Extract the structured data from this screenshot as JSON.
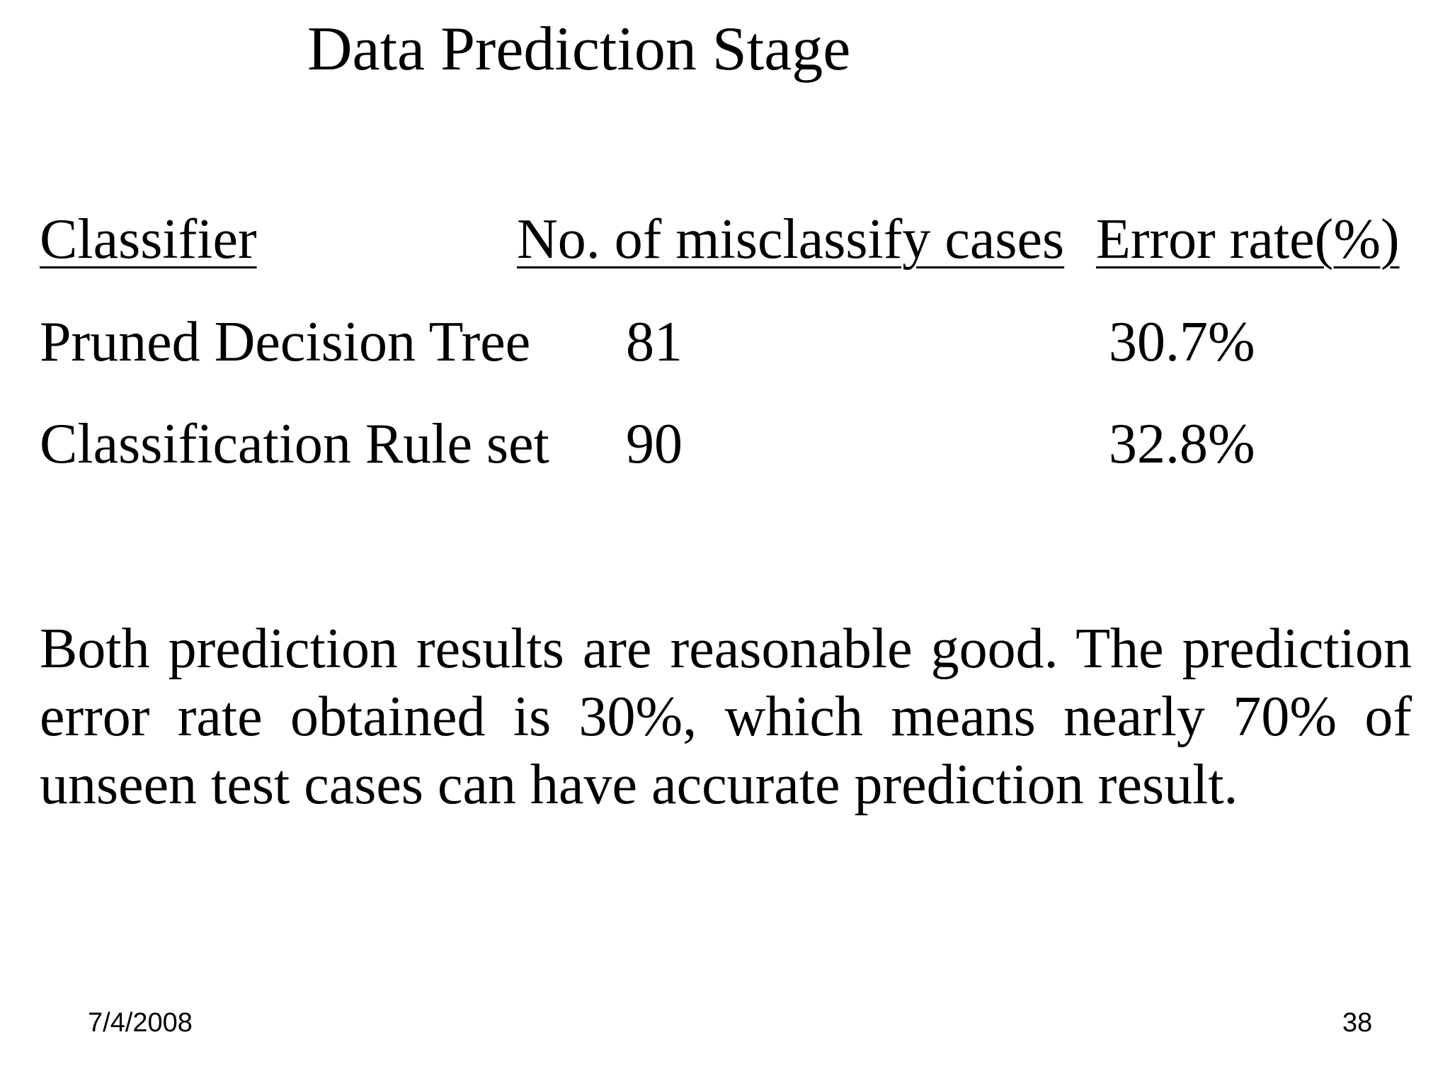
{
  "slide": {
    "title": "Data Prediction Stage",
    "table": {
      "headers": [
        "Classifier",
        "No. of misclassify cases",
        "Error rate(%)"
      ],
      "rows": [
        [
          "Pruned Decision Tree",
          "81",
          "30.7%"
        ],
        [
          "Classification Rule set",
          "90",
          "32.8%"
        ]
      ]
    },
    "summary": "Both prediction results are reasonable good. The prediction error rate obtained is 30%, which means nearly 70% of unseen test cases can have accurate prediction result.",
    "footer": {
      "date": "7/4/2008",
      "page_number": "38"
    }
  }
}
